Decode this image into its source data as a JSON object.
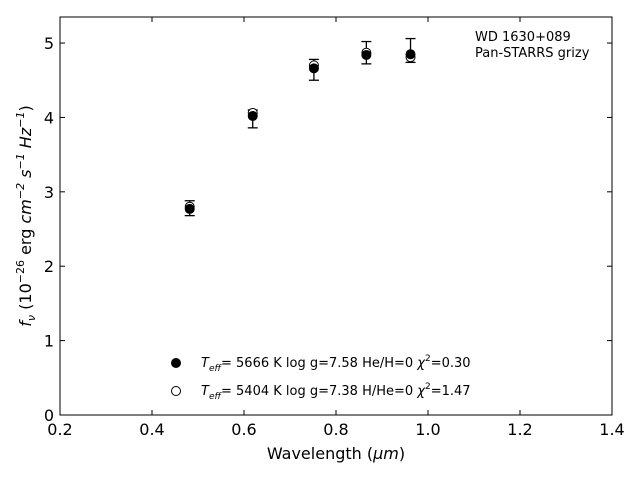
{
  "chart_data": {
    "type": "scatter",
    "annotation": {
      "line1": "WD 1630+089",
      "line2": "Pan-STARRS grizy"
    },
    "xlabel": {
      "text": "Wavelength (",
      "unit": "μm",
      "tail": ")"
    },
    "ylabel": {
      "f": "f",
      "nu": "ν",
      "pre": " (10",
      "exp1": "−26",
      "mid": " erg ",
      "cm": "cm",
      "exp2": "−2",
      "s": " s",
      "exp3": "−1",
      "hz": " Hz",
      "exp4": "−1",
      "close": ")"
    },
    "xlim": [
      0.2,
      1.4
    ],
    "ylim": [
      0,
      5.35
    ],
    "xticks": [
      0.2,
      0.4,
      0.6,
      0.8,
      1.0,
      1.2,
      1.4
    ],
    "xtick_labels": [
      "0.2",
      "0.4",
      "0.6",
      "0.8",
      "1.0",
      "1.2",
      "1.4"
    ],
    "yticks": [
      0,
      1,
      2,
      3,
      4,
      5
    ],
    "ytick_labels": [
      "0",
      "1",
      "2",
      "3",
      "4",
      "5"
    ],
    "grid": false,
    "legend_position": "bottom-center",
    "observed": {
      "x": [
        0.482,
        0.619,
        0.752,
        0.866,
        0.962
      ],
      "y": [
        2.78,
        3.98,
        4.64,
        4.87,
        4.9
      ],
      "err": [
        0.1,
        0.12,
        0.14,
        0.15,
        0.16
      ]
    },
    "series": [
      {
        "name": "He/H=0",
        "marker": "filled",
        "color": "#000000",
        "legend": {
          "T": "T",
          "sub": "eff",
          "rest": "=  5666 K  log g=7.58  He/H=0  ",
          "chi": "χ",
          "sup": "2",
          "val": "=0.30"
        },
        "x": [
          0.482,
          0.619,
          0.752,
          0.866,
          0.962
        ],
        "y": [
          2.77,
          4.02,
          4.66,
          4.84,
          4.85
        ]
      },
      {
        "name": "H/He=0",
        "marker": "open",
        "color": "#000000",
        "legend": {
          "T": "T",
          "sub": "eff",
          "rest": "=  5404 K  log g=7.38  H/He=0  ",
          "chi": "χ",
          "sup": "2",
          "val": "=1.47"
        },
        "x": [
          0.482,
          0.619,
          0.752,
          0.866,
          0.962
        ],
        "y": [
          2.8,
          4.06,
          4.7,
          4.87,
          4.81
        ]
      }
    ]
  }
}
